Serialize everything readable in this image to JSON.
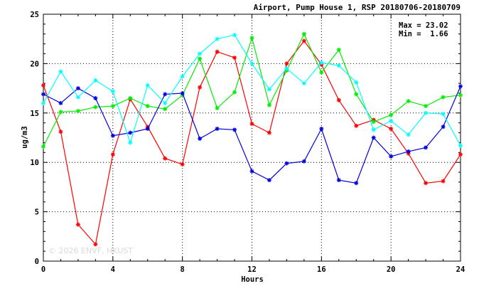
{
  "chart_data": {
    "type": "line",
    "title": "Airport, Pump House 1, RSP 20180706-20180709",
    "xlabel": "Hours",
    "ylabel": "ug/m3",
    "xlim": [
      0,
      24
    ],
    "ylim": [
      0,
      25
    ],
    "xticks": [
      0,
      4,
      8,
      12,
      16,
      20,
      24
    ],
    "yticks": [
      0,
      5,
      10,
      15,
      20,
      25
    ],
    "grid": true,
    "max_label": "Max = 23.02",
    "min_label": "Min =  1.66",
    "watermark": "© 2026 ENVF, HKUST",
    "x": [
      0,
      1,
      2,
      3,
      4,
      5,
      6,
      7,
      8,
      9,
      10,
      11,
      12,
      13,
      14,
      15,
      16,
      17,
      18,
      19,
      20,
      21,
      22,
      23,
      24
    ],
    "series": [
      {
        "color": "#ff0000",
        "marker": "asterisk",
        "values": [
          17.8,
          13.1,
          3.7,
          1.7,
          10.8,
          16.4,
          13.6,
          10.4,
          9.8,
          17.6,
          21.2,
          20.6,
          13.9,
          13.0,
          20.0,
          22.3,
          19.9,
          16.3,
          13.7,
          14.3,
          13.4,
          10.9,
          7.9,
          8.1,
          10.8
        ]
      },
      {
        "color": "#00ee00",
        "marker": "asterisk",
        "values": [
          11.6,
          15.1,
          15.2,
          15.6,
          15.7,
          16.5,
          15.7,
          15.4,
          16.8,
          20.5,
          15.5,
          17.1,
          22.6,
          15.8,
          19.3,
          23.0,
          19.1,
          21.4,
          16.9,
          14.1,
          14.8,
          16.2,
          15.7,
          16.6,
          16.8
        ]
      },
      {
        "color": "#0000dd",
        "marker": "asterisk",
        "values": [
          16.9,
          16.0,
          17.5,
          16.5,
          12.7,
          13.0,
          13.4,
          16.9,
          17.0,
          12.4,
          13.4,
          13.3,
          9.1,
          8.2,
          9.9,
          10.1,
          13.4,
          8.2,
          7.9,
          12.5,
          10.6,
          11.1,
          11.5,
          13.6,
          17.7
        ]
      },
      {
        "color": "#00ffff",
        "marker": "asterisk",
        "values": [
          16.0,
          19.2,
          16.6,
          18.3,
          17.2,
          12.0,
          17.8,
          16.0,
          18.7,
          21.0,
          22.5,
          22.9,
          20.0,
          17.4,
          19.5,
          18.0,
          20.1,
          19.8,
          18.1,
          13.3,
          14.2,
          12.8,
          15.0,
          14.9,
          11.7
        ]
      }
    ]
  }
}
